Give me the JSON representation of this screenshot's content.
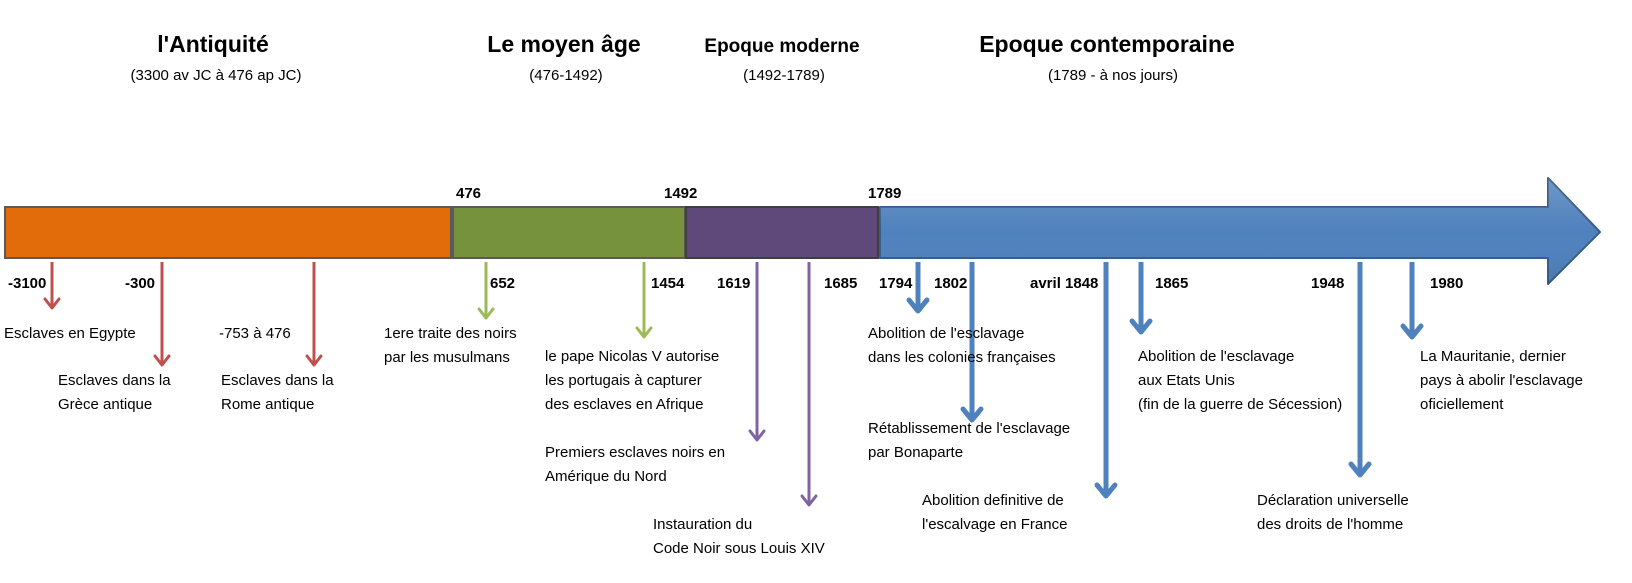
{
  "eras": [
    {
      "title": "l'Antiquité",
      "range": "(3300 av JC à 476 ap JC)",
      "color": "#E36C0A"
    },
    {
      "title": "Le moyen âge",
      "range": "(476-1492)",
      "color": "#76923C"
    },
    {
      "title": "Epoque moderne",
      "range": "(1492-1789)",
      "color": "#5F497A"
    },
    {
      "title": "Epoque contemporaine",
      "range": "(1789 - à nos jours)",
      "color": "#4F81BD"
    }
  ],
  "boundaries": [
    "476",
    "1492",
    "1789"
  ],
  "events": [
    {
      "year": "-3100",
      "lines": [
        "Esclaves en Egypte"
      ],
      "color": "#C0504D"
    },
    {
      "year": "-300",
      "lines": [
        "Esclaves dans la",
        "Grèce antique"
      ],
      "color": "#C0504D"
    },
    {
      "year": "-753 à 476",
      "lines": [
        "Esclaves dans la",
        "Rome antique"
      ],
      "color": "#C0504D"
    },
    {
      "year": "652",
      "lines": [
        "1ere traite des noirs",
        "par les musulmans"
      ],
      "color": "#9BBB59"
    },
    {
      "year": "1454",
      "lines": [
        "le pape Nicolas V autorise",
        "les portugais à capturer",
        "des esclaves en Afrique"
      ],
      "color": "#9BBB59"
    },
    {
      "year": "1619",
      "lines": [
        "Premiers esclaves noirs en",
        "Amérique du Nord"
      ],
      "color": "#8064A2"
    },
    {
      "year": "1685",
      "lines": [
        "Instauration du",
        "Code Noir sous Louis XIV"
      ],
      "color": "#8064A2"
    },
    {
      "year": "1794",
      "lines": [
        "Abolition de l'esclavage",
        "dans les colonies françaises"
      ],
      "color": "#4F81BD"
    },
    {
      "year": "1802",
      "lines": [
        "Rétablissement de l'esclavage",
        "par Bonaparte"
      ],
      "color": "#4F81BD"
    },
    {
      "year": "avril 1848",
      "lines": [
        "Abolition definitive de",
        "l'escalvage en France"
      ],
      "color": "#4F81BD"
    },
    {
      "year": "1865",
      "lines": [
        "Abolition de l'esclavage",
        "aux Etats Unis",
        "(fin de la guerre de Sécession)"
      ],
      "color": "#4F81BD"
    },
    {
      "year": "1948",
      "lines": [
        "Déclaration universelle",
        "des droits de l'homme"
      ],
      "color": "#4F81BD"
    },
    {
      "year": "1980",
      "lines": [
        "La Mauritanie, dernier",
        "pays à abolir l'esclavage",
        "oficiellement"
      ],
      "color": "#4F81BD"
    }
  ]
}
